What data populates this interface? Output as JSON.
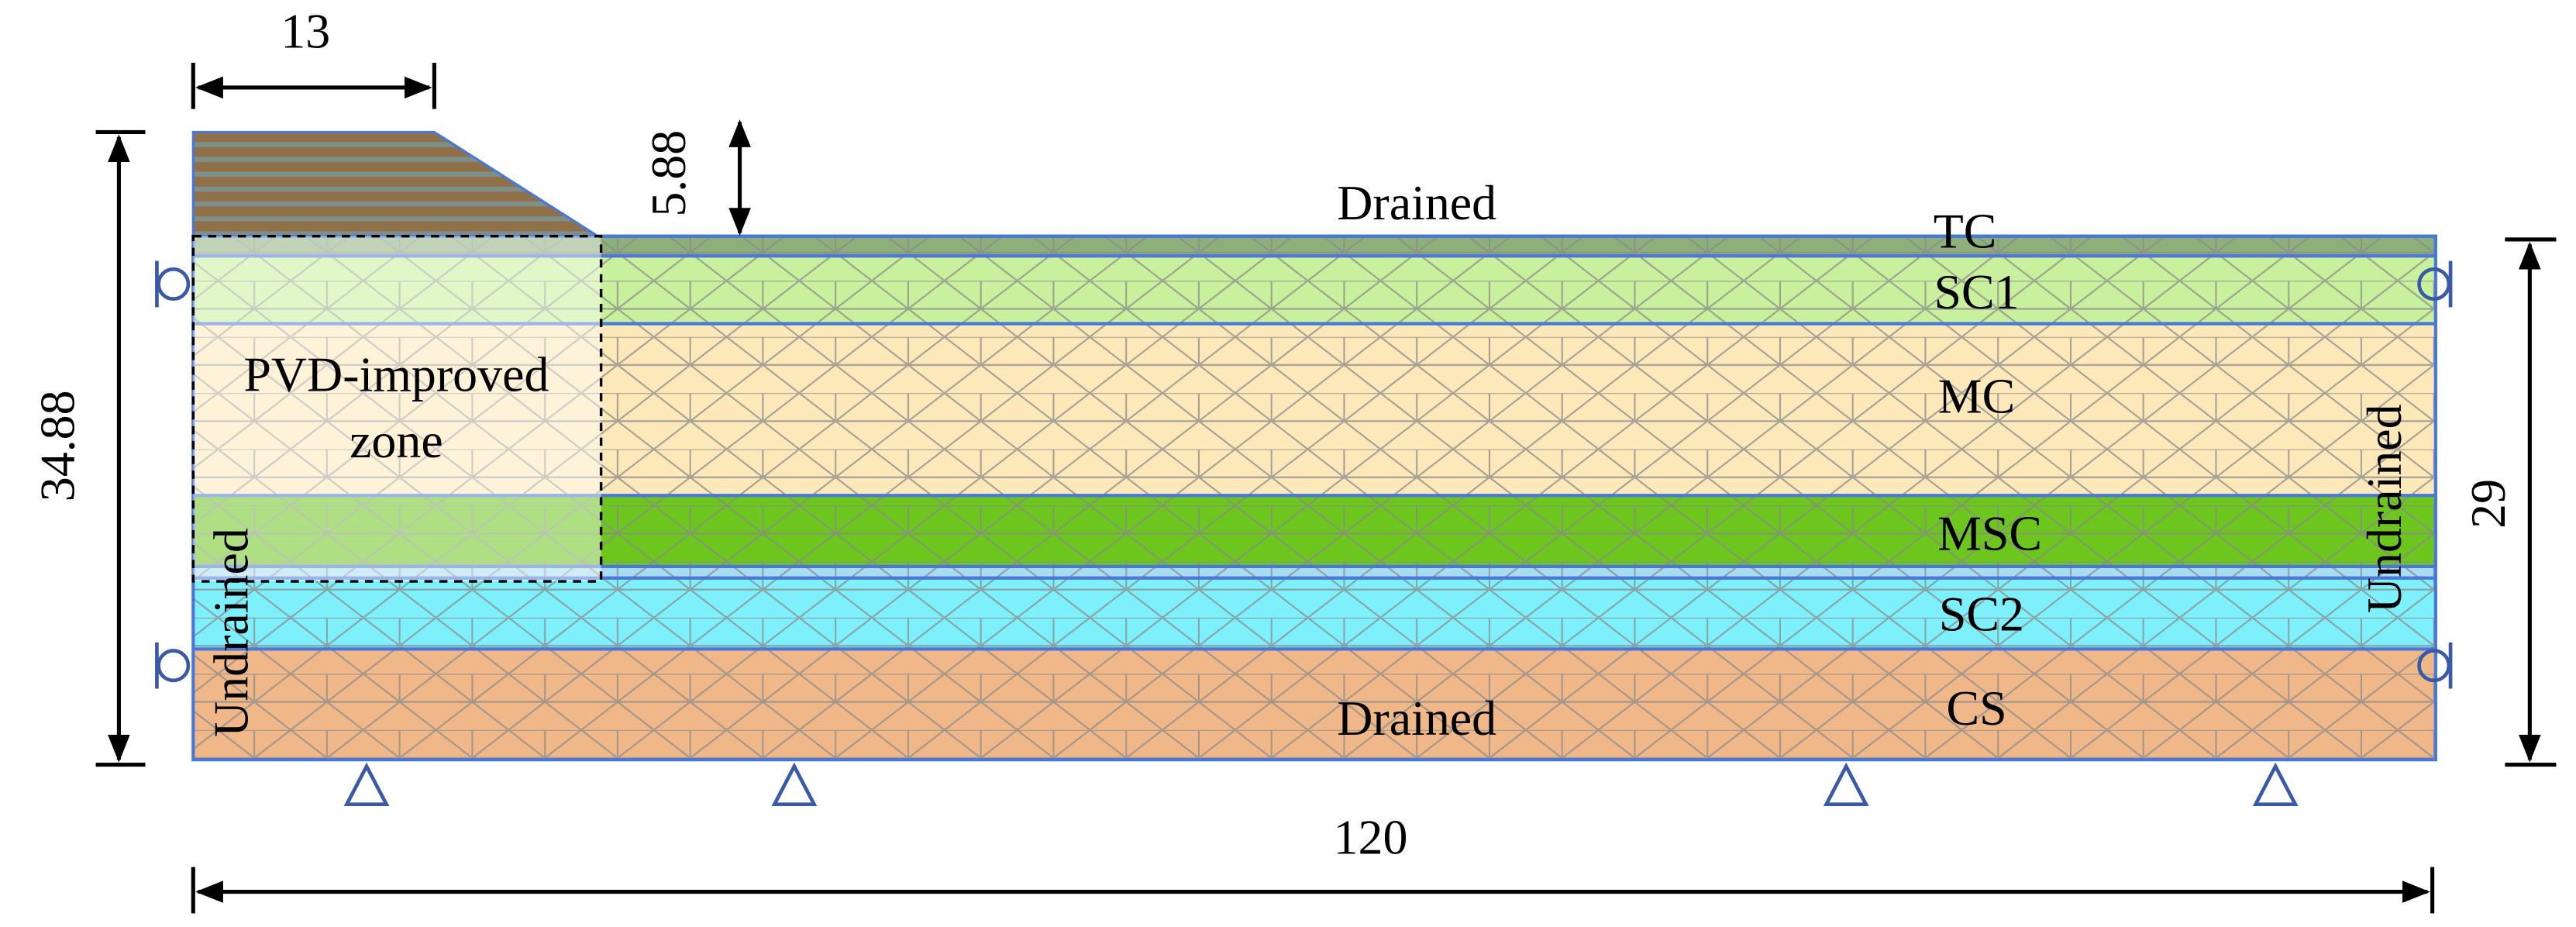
{
  "dimensions": {
    "embankment_width": 13,
    "embankment_height": 5.88,
    "total_height": 34.88,
    "soil_depth": 29,
    "model_width": 120
  },
  "boundaries": {
    "top": "Drained",
    "bottom": "Drained",
    "left": "Undrained",
    "right": "Undrained"
  },
  "layers": [
    "TC",
    "SC1",
    "MC",
    "MSC",
    "SC2",
    "CS"
  ],
  "zone": {
    "line1": "PVD-improved",
    "line2": "zone"
  }
}
